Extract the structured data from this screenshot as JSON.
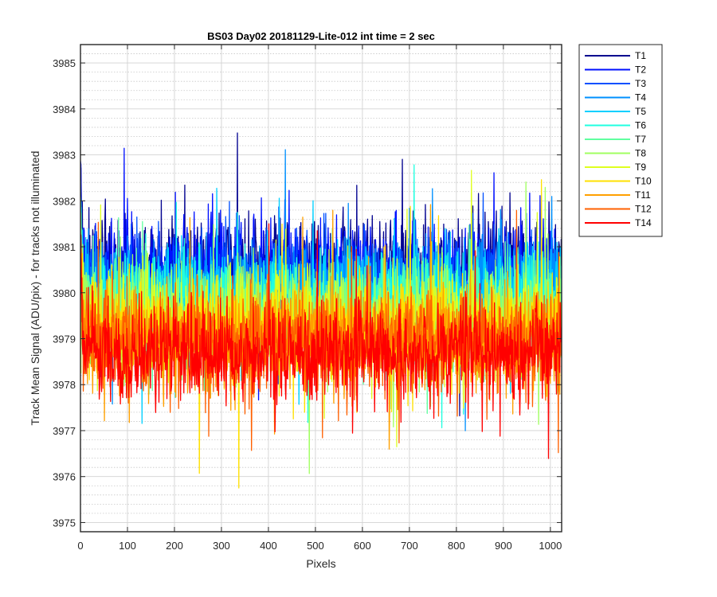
{
  "chart_data": {
    "type": "line",
    "title": "BS03 Day02 20181129-Lite-012 int time = 2 sec",
    "xlabel": "Pixels",
    "ylabel": "Track Mean Signal (ADU/pix) - for tracks not illuminated",
    "xlim": [
      0,
      1024
    ],
    "ylim": [
      3974.8,
      3985.4
    ],
    "x_ticks": [
      0,
      100,
      200,
      300,
      400,
      500,
      600,
      700,
      800,
      900,
      1000
    ],
    "y_ticks": [
      3975,
      3976,
      3977,
      3978,
      3979,
      3980,
      3981,
      3982,
      3983,
      3984,
      3985
    ],
    "y_minor_step": 0.2,
    "grid": true,
    "legend_position": "outside-top-right",
    "points_per_series": 1024,
    "series": [
      {
        "name": "T1",
        "color": "#00008F",
        "mean": 3980.6,
        "noise": 0.55
      },
      {
        "name": "T2",
        "color": "#0010FF",
        "mean": 3980.4,
        "noise": 0.55
      },
      {
        "name": "T3",
        "color": "#0050FF",
        "mean": 3980.2,
        "noise": 0.55
      },
      {
        "name": "T4",
        "color": "#0090FF",
        "mean": 3980.0,
        "noise": 0.55
      },
      {
        "name": "T5",
        "color": "#00D0FF",
        "mean": 3979.9,
        "noise": 0.55
      },
      {
        "name": "T6",
        "color": "#20FFE0",
        "mean": 3979.8,
        "noise": 0.55
      },
      {
        "name": "T7",
        "color": "#60FFA0",
        "mean": 3979.6,
        "noise": 0.55
      },
      {
        "name": "T8",
        "color": "#A0FF60",
        "mean": 3979.4,
        "noise": 0.55
      },
      {
        "name": "T9",
        "color": "#DFFF20",
        "mean": 3979.3,
        "noise": 0.55
      },
      {
        "name": "T10",
        "color": "#FFE000",
        "mean": 3979.2,
        "noise": 0.55
      },
      {
        "name": "T11",
        "color": "#FFA000",
        "mean": 3979.0,
        "noise": 0.55
      },
      {
        "name": "T12",
        "color": "#FF6000",
        "mean": 3978.9,
        "noise": 0.55
      },
      {
        "name": "T14",
        "color": "#FF0000",
        "mean": 3978.7,
        "noise": 0.55
      }
    ]
  }
}
